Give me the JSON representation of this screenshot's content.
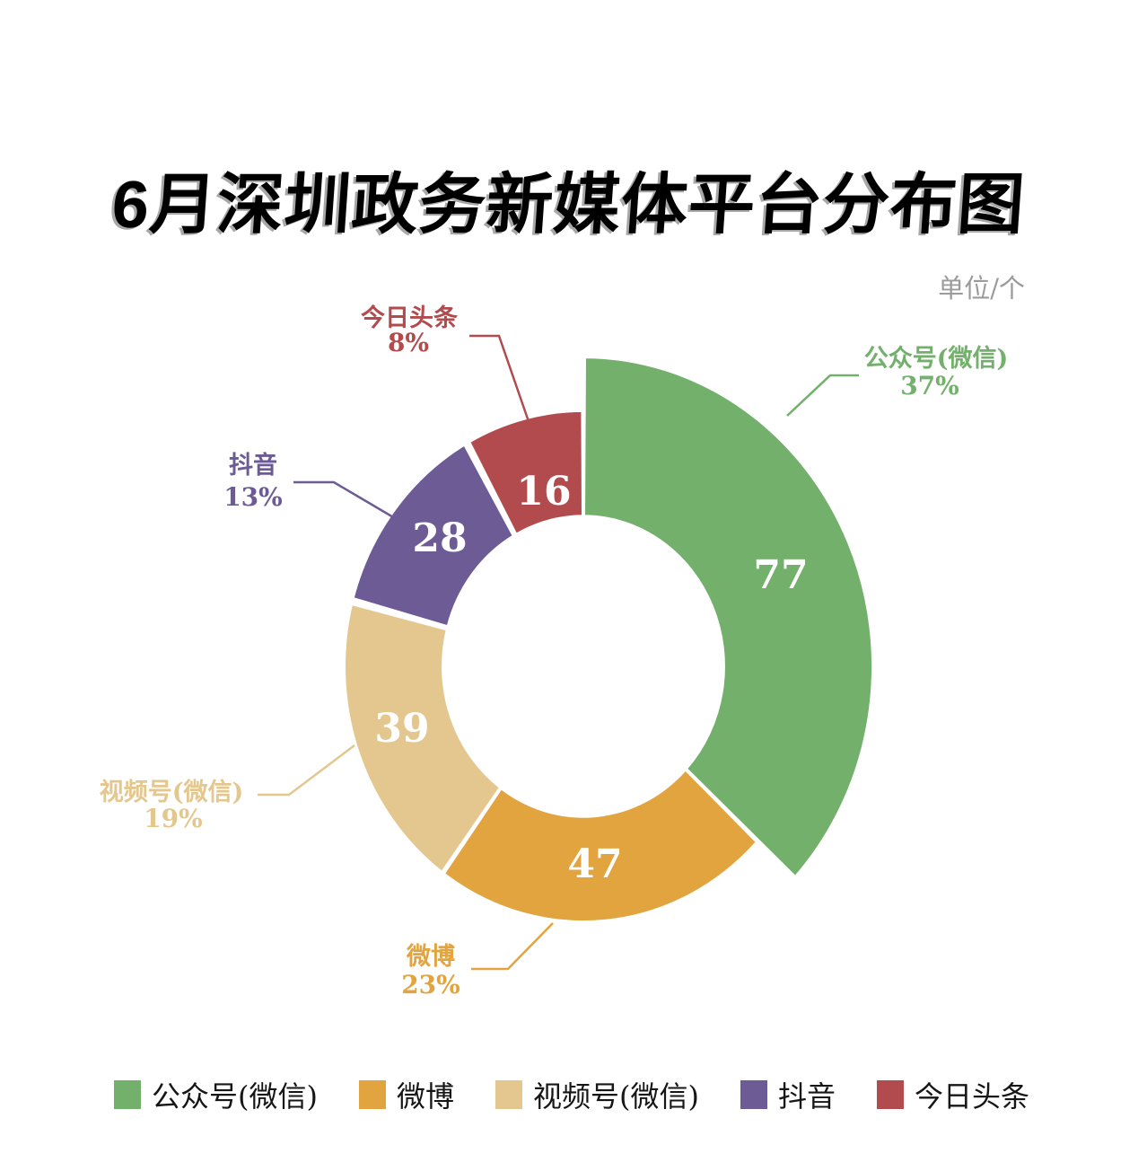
{
  "header": {
    "title": "6月深圳政务新媒体平台分布图",
    "unit_label": "单位/个"
  },
  "chart_data": {
    "type": "pie",
    "subtype": "donut",
    "title": "6月深圳政务新媒体平台分布图",
    "unit": "单位/个",
    "start_angle_deg": 0,
    "direction": "clockwise",
    "categories": [
      "公众号(微信)",
      "微博",
      "视频号(微信)",
      "抖音",
      "今日头条"
    ],
    "values": [
      77,
      47,
      39,
      28,
      16
    ],
    "percent_labels": [
      "37%",
      "23%",
      "19%",
      "13%",
      "8%"
    ],
    "colors": [
      "#72b06b",
      "#e1a43f",
      "#e3c78f",
      "#6d5b95",
      "#b14b4e"
    ],
    "slice_ids": [
      "wechat-official-account",
      "weibo",
      "wechat-video-account",
      "douyin",
      "toutiao"
    ],
    "emphasized_category": "公众号(微信)",
    "value_label_color": "#ffffff",
    "legend_position": "bottom",
    "background_color": "#ffffff"
  }
}
